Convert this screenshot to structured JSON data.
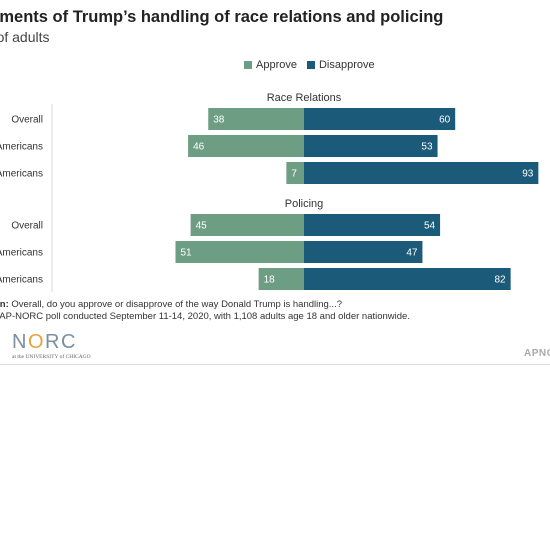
{
  "header": {
    "title": "ssments of Trump’s handling of race relations and policing",
    "subtitle": "nt of adults"
  },
  "legend": {
    "items": [
      {
        "label": "Approve",
        "color": "#6d9e84"
      },
      {
        "label": "Disapprove",
        "color": "#1b5a78"
      }
    ]
  },
  "chart_data": {
    "type": "bar",
    "orientation": "horizontal-diverging",
    "xlim": [
      -60,
      100
    ],
    "panels": [
      {
        "title": "Race Relations",
        "categories": [
          "Overall",
          "Americans",
          "Americans"
        ],
        "series": [
          {
            "name": "Approve",
            "values": [
              38,
              46,
              7
            ]
          },
          {
            "name": "Disapprove",
            "values": [
              60,
              53,
              93
            ]
          }
        ]
      },
      {
        "title": "Policing",
        "categories": [
          "Overall",
          "Americans",
          "Americans"
        ],
        "series": [
          {
            "name": "Approve",
            "values": [
              45,
              51,
              18
            ]
          },
          {
            "name": "Disapprove",
            "values": [
              54,
              47,
              82
            ]
          }
        ]
      }
    ]
  },
  "footnotes": {
    "question_label": "on:",
    "question_text": " Overall, do you approve or disapprove of the way Donald Trump is handling...?",
    "source_label": ":",
    "source_text": " AP-NORC poll conducted September 11-14, 2020, with 1,108 adults age 18 and older nationwide."
  },
  "branding": {
    "logo_text_start": "N",
    "logo_text_accent": "O",
    "logo_text_end": "RC",
    "logo_subtext": "at the UNIVERSITY of CHICAGO",
    "right_text": "APNO"
  }
}
